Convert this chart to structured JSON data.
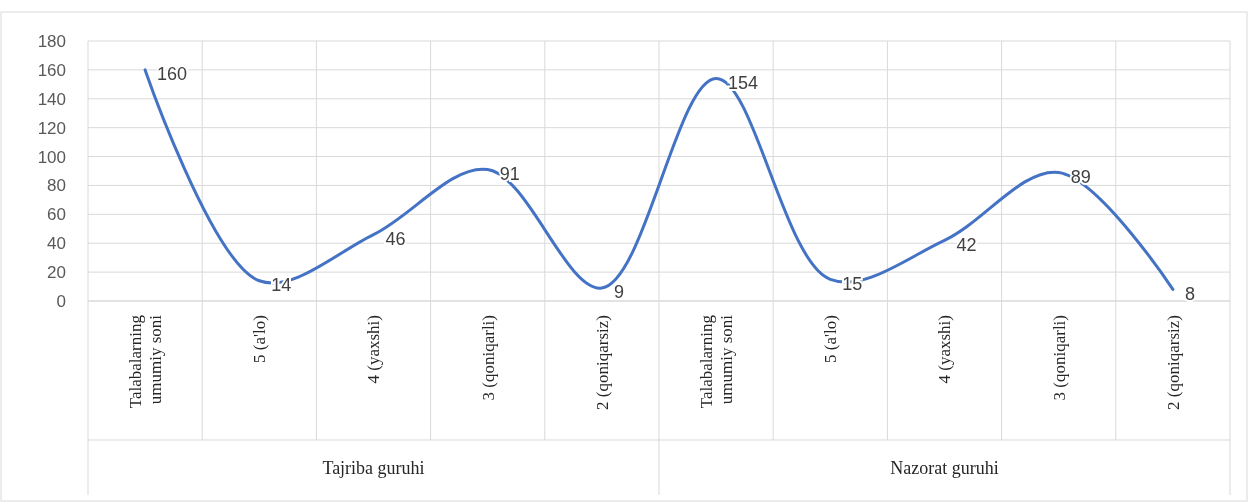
{
  "chart_data": {
    "type": "line",
    "categories": [
      "Talabalarning umumiy soni",
      "5 (a'lo)",
      "4 (yaxshi)",
      "3 (qoniqarli)",
      "2 (qoniqarsiz)",
      "Talabalarning umumiy soni",
      "5 (a'lo)",
      "4 (yaxshi)",
      "3 (qoniqarli)",
      "2 (qoniqarsiz)"
    ],
    "series": [
      {
        "color": "#4472c4",
        "values": [
          160,
          14,
          46,
          91,
          9,
          154,
          15,
          42,
          89,
          8
        ]
      }
    ],
    "ylim": [
      0,
      180
    ],
    "yticks": [
      0,
      20,
      40,
      60,
      80,
      100,
      120,
      140,
      160,
      180
    ],
    "grid": true,
    "data_labels": true,
    "marker": "none",
    "line_style": "solid",
    "annotations": [
      "Tajriba guruhi",
      "Nazorat guruhi"
    ]
  }
}
